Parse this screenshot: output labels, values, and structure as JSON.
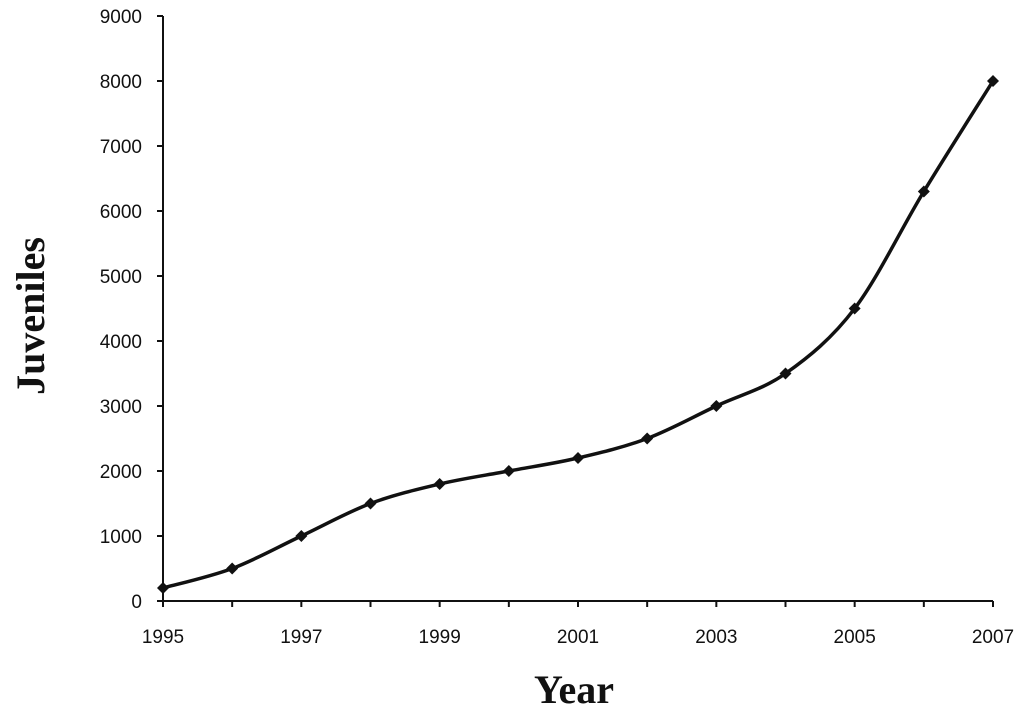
{
  "chart_data": {
    "type": "line",
    "xlabel": "Year",
    "ylabel": "Juveniles",
    "xlim": [
      1995,
      2007
    ],
    "ylim": [
      0,
      9000
    ],
    "x_ticks": [
      "1995",
      "1997",
      "1999",
      "2001",
      "2003",
      "2005",
      "2007"
    ],
    "y_ticks": [
      "0",
      "1000",
      "2000",
      "3000",
      "4000",
      "5000",
      "6000",
      "7000",
      "8000",
      "9000"
    ],
    "grid": false,
    "legend": "none",
    "smooth": true,
    "marker": "diamond",
    "color": "#111111",
    "series": [
      {
        "x": [
          1995,
          1996,
          1997,
          1998,
          1999,
          2000,
          2001,
          2002,
          2003,
          2004,
          2005,
          2006,
          2007
        ],
        "values": [
          200,
          500,
          1000,
          1500,
          1800,
          2000,
          2200,
          2500,
          3000,
          3500,
          4500,
          6300,
          8000
        ]
      }
    ]
  }
}
